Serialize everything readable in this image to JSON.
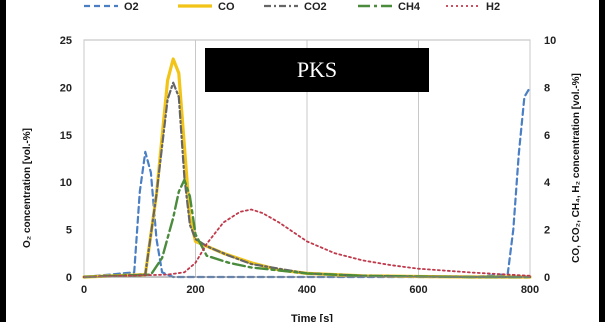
{
  "chart_data": {
    "type": "line",
    "title": "PKS",
    "xlabel": "Time [s]",
    "ylabel_left": "O₂ concentration [vol.-%]",
    "ylabel_right": "CO, CO₂, CH₄, H₂ concentration [vol.-%]",
    "xlim": [
      0,
      800
    ],
    "ylim_left": [
      0,
      25
    ],
    "ylim_right": [
      0,
      10
    ],
    "x_ticks": [
      "0",
      "200",
      "400",
      "600",
      "800"
    ],
    "y_left_ticks": [
      "0",
      "5",
      "10",
      "15",
      "20",
      "25"
    ],
    "y_right_ticks": [
      "0",
      "2",
      "4",
      "6",
      "8",
      "10"
    ],
    "legend_position": "top",
    "grid": "vertical",
    "series": [
      {
        "name": "O2",
        "axis": "left",
        "color": "#4a7fc4",
        "dash": "6,4",
        "width": 2.2,
        "x": [
          0,
          90,
          100,
          110,
          120,
          130,
          140,
          160,
          200,
          260,
          300,
          400,
          500,
          600,
          700,
          760,
          770,
          780,
          790,
          800
        ],
        "y": [
          0,
          0.5,
          9,
          13.2,
          11,
          4,
          0.5,
          0,
          0,
          0,
          0,
          0,
          0,
          0,
          0,
          0.3,
          5,
          13,
          19,
          20
        ]
      },
      {
        "name": "CO",
        "axis": "right",
        "color": "#f2c418",
        "dash": "",
        "width": 3.2,
        "x": [
          0,
          110,
          130,
          150,
          160,
          170,
          180,
          190,
          200,
          220,
          250,
          300,
          350,
          400,
          500,
          600,
          700,
          800
        ],
        "y": [
          0,
          0.1,
          3.5,
          8.3,
          9.2,
          8.6,
          5.5,
          2.5,
          1.5,
          1.3,
          1.0,
          0.6,
          0.3,
          0.15,
          0.05,
          0.02,
          0,
          0
        ]
      },
      {
        "name": "CO2",
        "axis": "right",
        "color": "#666666",
        "dash": "7,3,2,3",
        "width": 2.2,
        "x": [
          0,
          110,
          130,
          150,
          160,
          170,
          180,
          190,
          200,
          220,
          260,
          300,
          400,
          500,
          600,
          700,
          800
        ],
        "y": [
          0,
          0.1,
          3.5,
          7.5,
          8.2,
          7.6,
          4.2,
          2.2,
          1.6,
          1.3,
          0.9,
          0.55,
          0.15,
          0.05,
          0.02,
          0,
          0
        ]
      },
      {
        "name": "CH4",
        "axis": "right",
        "color": "#4a8b3c",
        "dash": "12,4,3,4",
        "width": 2.4,
        "x": [
          0,
          120,
          140,
          160,
          170,
          180,
          190,
          200,
          220,
          260,
          300,
          400,
          500,
          600,
          700,
          800
        ],
        "y": [
          0,
          0.1,
          0.8,
          2.5,
          3.6,
          4.1,
          3.4,
          1.8,
          0.9,
          0.6,
          0.4,
          0.15,
          0.05,
          0.02,
          0,
          0
        ]
      },
      {
        "name": "H2",
        "axis": "right",
        "color": "#c0394b",
        "dash": "2,3",
        "width": 1.8,
        "x": [
          0,
          150,
          180,
          200,
          220,
          250,
          280,
          300,
          320,
          350,
          400,
          450,
          500,
          550,
          600,
          700,
          800
        ],
        "y": [
          0,
          0.1,
          0.2,
          0.6,
          1.4,
          2.3,
          2.75,
          2.85,
          2.7,
          2.3,
          1.5,
          1.0,
          0.7,
          0.5,
          0.35,
          0.18,
          0.05
        ]
      }
    ]
  }
}
